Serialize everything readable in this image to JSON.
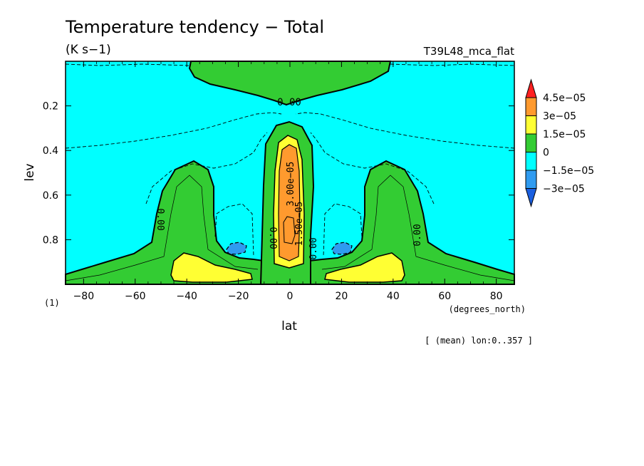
{
  "chart_data": {
    "type": "heatmap",
    "title": "Temperature tendency − Total",
    "units": "(K s−1)",
    "experiment": "T39L48_mca_flat",
    "xlabel": "lat",
    "xunits": "(degrees_north)",
    "ylabel": "lev",
    "yunits": "(1)",
    "footnote": "[ (mean) lon:0..357 ]",
    "xlim": [
      -87,
      87
    ],
    "ylim": [
      1.0,
      0.0
    ],
    "x_ticks": [
      -80,
      -60,
      -40,
      -20,
      0,
      20,
      40,
      60,
      80
    ],
    "y_ticks": [
      0.2,
      0.4,
      0.6,
      0.8
    ],
    "x_tick_labels": [
      "−80",
      "−60",
      "−40",
      "−20",
      "0",
      "20",
      "40",
      "60",
      "80"
    ],
    "y_tick_labels": [
      "0.2",
      "0.4",
      "0.6",
      "0.8"
    ],
    "colorbar": {
      "labels": [
        "4.5e−05",
        "3e−05",
        "1.5e−05",
        "0",
        "−1.5e−05",
        "−3e−05"
      ],
      "colors": [
        "#ff2020",
        "#ff9a2e",
        "#ffff33",
        "#33cc33",
        "#00ffff",
        "#2f9bf0",
        "#1a5fe0"
      ]
    },
    "contour_labels": [
      "0.00",
      "0.00",
      "0.00",
      "0.00",
      "0.00",
      "3.00e−05",
      "1.50e−05"
    ],
    "regions": [
      {
        "name": "upper-positive",
        "value_range": [
          0,
          1.5e-05
        ],
        "lat": [
          -38,
          40
        ],
        "lev": [
          0.0,
          0.18
        ]
      },
      {
        "name": "equatorial-column",
        "value_range": [
          1.5e-05,
          4.5e-05
        ],
        "lat": [
          -10,
          12
        ],
        "lev": [
          0.28,
          0.98
        ]
      },
      {
        "name": "southern-lobe",
        "value_range": [
          0,
          1.5e-05
        ],
        "lat": [
          -53,
          -36
        ],
        "lev": [
          0.44,
          0.98
        ]
      },
      {
        "name": "northern-lobe",
        "value_range": [
          0,
          1.5e-05
        ],
        "lat": [
          31,
          55
        ],
        "lev": [
          0.44,
          0.98
        ]
      },
      {
        "name": "southern-min",
        "value_range": [
          -3e-05,
          -1.5e-05
        ],
        "lat": [
          -26,
          -17
        ],
        "lev": [
          0.81,
          0.86
        ]
      },
      {
        "name": "northern-min",
        "value_range": [
          -3e-05,
          -1.5e-05
        ],
        "lat": [
          17,
          25
        ],
        "lev": [
          0.81,
          0.86
        ]
      }
    ]
  }
}
